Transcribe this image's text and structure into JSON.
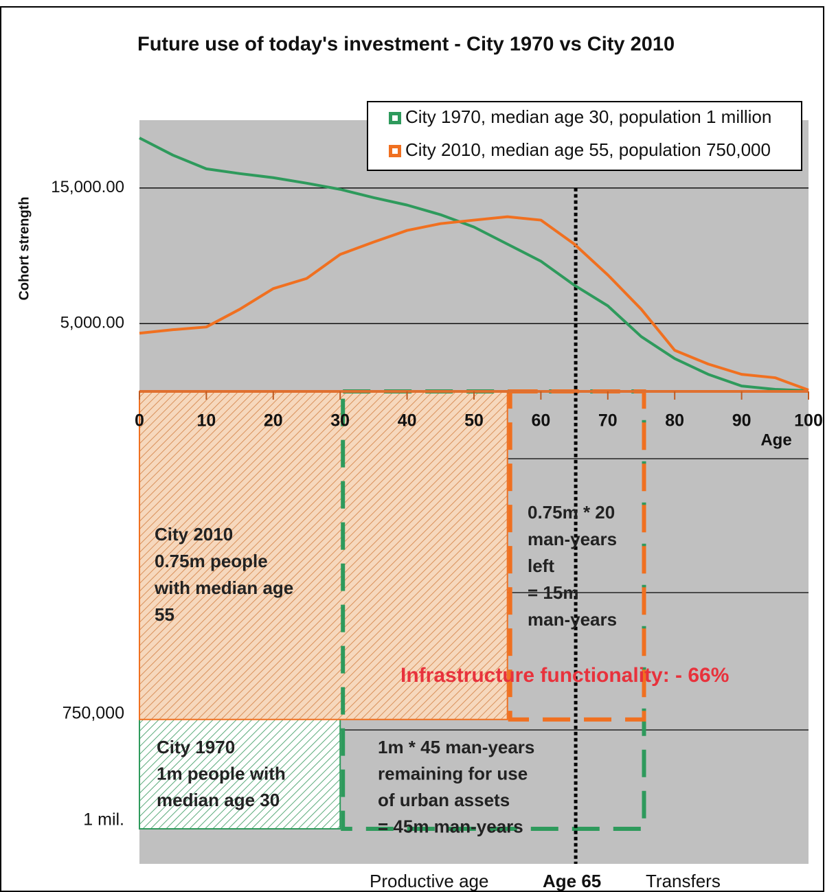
{
  "chart_data": [
    {
      "type": "line",
      "title": "Future use of today's investment - City 1970 vs City 2010",
      "y_label": "Cohort strength",
      "x_label": "Age",
      "x": [
        0,
        5,
        10,
        15,
        20,
        25,
        30,
        35,
        40,
        45,
        50,
        55,
        60,
        65,
        70,
        75,
        80,
        85,
        90,
        95,
        100
      ],
      "series": [
        {
          "name": "City 1970, median age 30, population 1 million",
          "color": "#2e9a5c",
          "values": [
            18690,
            17420,
            16410,
            16060,
            15760,
            15350,
            14900,
            14290,
            13740,
            13030,
            12120,
            10860,
            9600,
            7830,
            6310,
            4040,
            2420,
            1260,
            400,
            150,
            50
          ]
        },
        {
          "name": "City 2010, median age 55, population 750,000",
          "color": "#f07020",
          "values": [
            4290,
            4550,
            4750,
            6060,
            7580,
            8330,
            10100,
            11010,
            11870,
            12370,
            12630,
            12880,
            12630,
            10860,
            8590,
            6060,
            3030,
            2020,
            1260,
            1010,
            100
          ]
        }
      ],
      "xlim": [
        0,
        100
      ],
      "xticks": [
        0,
        10,
        20,
        30,
        40,
        50,
        60,
        70,
        80,
        90,
        100
      ],
      "ylim": [
        0,
        20000
      ],
      "yticks": [
        {
          "value": 5000,
          "label": "5,000.00"
        },
        {
          "value": 15000,
          "label": "15,000.00"
        }
      ],
      "grid": true,
      "legend": "top-right",
      "marker_x": 65
    },
    {
      "type": "blocks",
      "ylim": [
        0,
        1000000
      ],
      "yticks": [
        {
          "value": 750000,
          "label": "750,000"
        },
        {
          "value": 1000000,
          "label": "1 mil."
        }
      ],
      "blocks": [
        {
          "x": [
            0,
            30
          ],
          "value": 1000000,
          "color": "#2e9a5c",
          "text": [
            "City 1970",
            "1m people with",
            "median age 30"
          ]
        },
        {
          "x": [
            0,
            55
          ],
          "value": 750000,
          "color": "#f07020",
          "text": [
            "City 2010",
            "0.75m people",
            "with median age",
            "55"
          ]
        }
      ],
      "remaining": [
        {
          "x": [
            30,
            75
          ],
          "value": 1000000,
          "color": "#2e9a5c",
          "text": [
            "1m * 45 man-years",
            "remaining for use",
            "of urban assets",
            "= 45m man-years"
          ]
        },
        {
          "x": [
            55,
            75
          ],
          "value": 750000,
          "color": "#f07020",
          "text": [
            "0.75m * 20",
            "man-years",
            "left",
            "= 15m",
            "man-years"
          ]
        }
      ],
      "headline": "Infrastructure functionality: - 66%",
      "footer": [
        "Productive age",
        "Age 65",
        "Transfers"
      ]
    }
  ]
}
